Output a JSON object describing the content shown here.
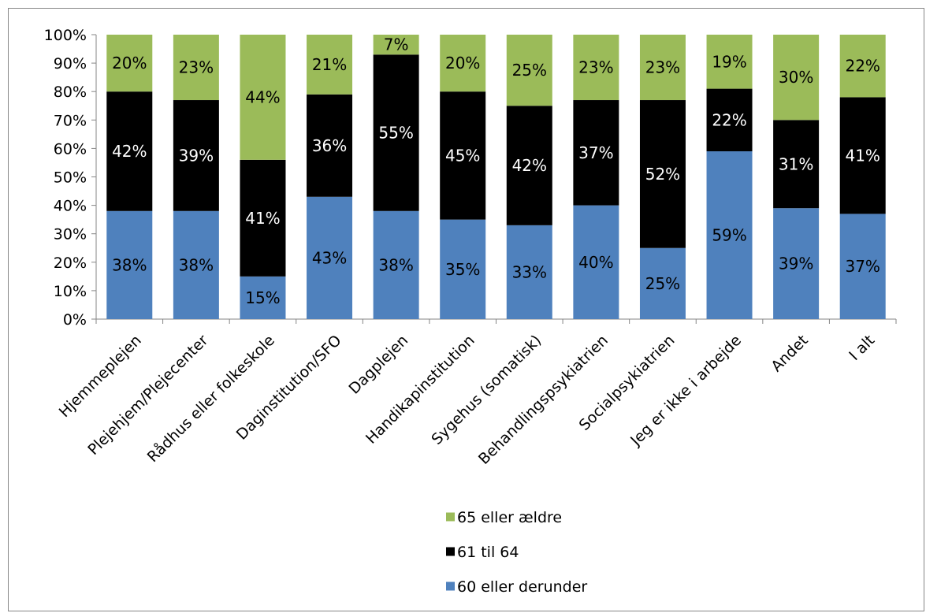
{
  "chart_data": {
    "type": "bar",
    "stacked": true,
    "percent_stacked": true,
    "title": "",
    "xlabel": "",
    "ylabel": "",
    "ylim": [
      0,
      100
    ],
    "y_ticks": [
      "0%",
      "10%",
      "20%",
      "30%",
      "40%",
      "50%",
      "60%",
      "70%",
      "80%",
      "90%",
      "100%"
    ],
    "grid": false,
    "legend_position": "bottom",
    "categories": [
      "Hjemmeplejen",
      "Plejehjem/Plejecenter",
      "Rådhus eller folkeskole",
      "Daginstitution/SFO",
      "Dagplejen",
      "Handikapinstitution",
      "Sygehus (somatisk)",
      "Behandlingspsykiatrien",
      "Socialpsykiatrien",
      "Jeg er ikke i arbejde",
      "Andet",
      "I alt"
    ],
    "series": [
      {
        "name": "60 eller derunder",
        "color": "#4F81BD",
        "label_color": "#000000",
        "values": [
          38,
          38,
          15,
          43,
          38,
          35,
          33,
          40,
          25,
          59,
          39,
          37
        ]
      },
      {
        "name": "61 til 64",
        "color": "#000000",
        "label_color": "#FFFFFF",
        "values": [
          42,
          39,
          41,
          36,
          55,
          45,
          42,
          37,
          52,
          22,
          31,
          41
        ]
      },
      {
        "name": "65 eller ældre",
        "color": "#9BBB59",
        "label_color": "#000000",
        "values": [
          20,
          23,
          44,
          21,
          7,
          20,
          25,
          23,
          23,
          19,
          30,
          22
        ]
      }
    ],
    "legend_order": [
      "65 eller ældre",
      "61 til 64",
      "60 eller derunder"
    ]
  }
}
